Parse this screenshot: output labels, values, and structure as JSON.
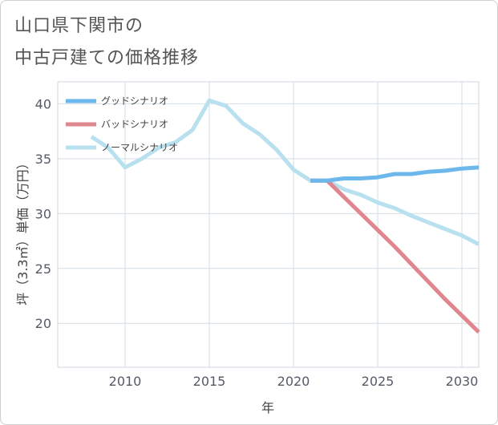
{
  "title": {
    "line1": "山口県下関市の",
    "line2": "中古戸建ての価格推移"
  },
  "chart_data": {
    "type": "line",
    "xlabel": "年",
    "ylabel": "坪（3.3㎡）単価（万円）",
    "xlim": [
      2006,
      2031
    ],
    "ylim": [
      16,
      42
    ],
    "xticks": [
      2010,
      2015,
      2020,
      2025,
      2030
    ],
    "yticks": [
      20,
      25,
      30,
      35,
      40
    ],
    "grid": true,
    "legend_position": "top-left",
    "series": [
      {
        "name": "グッドシナリオ",
        "color": "#6cb8ec",
        "points": [
          [
            2021,
            33
          ],
          [
            2022,
            33
          ],
          [
            2023,
            33.2
          ],
          [
            2024,
            33.2
          ],
          [
            2025,
            33.3
          ],
          [
            2026,
            33.6
          ],
          [
            2027,
            33.6
          ],
          [
            2028,
            33.8
          ],
          [
            2029,
            33.9
          ],
          [
            2030,
            34.1
          ],
          [
            2031,
            34.2
          ]
        ]
      },
      {
        "name": "バッドシナリオ",
        "color": "#e0868e",
        "points": [
          [
            2021,
            33
          ],
          [
            2022,
            33
          ],
          [
            2023,
            31.5
          ],
          [
            2024,
            30
          ],
          [
            2025,
            28.5
          ],
          [
            2026,
            27
          ],
          [
            2027,
            25.4
          ],
          [
            2028,
            23.8
          ],
          [
            2029,
            22.2
          ],
          [
            2030,
            20.7
          ],
          [
            2031,
            19.2
          ]
        ]
      },
      {
        "name": "ノーマルシナリオ",
        "color": "#b8e0ef",
        "points": [
          [
            2008,
            37
          ],
          [
            2009,
            36
          ],
          [
            2010,
            34.2
          ],
          [
            2011,
            35
          ],
          [
            2012,
            36
          ],
          [
            2013,
            36.5
          ],
          [
            2014,
            37.6
          ],
          [
            2015,
            40.3
          ],
          [
            2016,
            39.8
          ],
          [
            2017,
            38.2
          ],
          [
            2018,
            37.2
          ],
          [
            2019,
            35.8
          ],
          [
            2020,
            34
          ],
          [
            2021,
            33
          ],
          [
            2022,
            33
          ],
          [
            2023,
            32.2
          ],
          [
            2024,
            31.7
          ],
          [
            2025,
            31
          ],
          [
            2026,
            30.5
          ],
          [
            2027,
            29.8
          ],
          [
            2028,
            29.2
          ],
          [
            2029,
            28.6
          ],
          [
            2030,
            28
          ],
          [
            2031,
            27.2
          ]
        ]
      }
    ]
  }
}
